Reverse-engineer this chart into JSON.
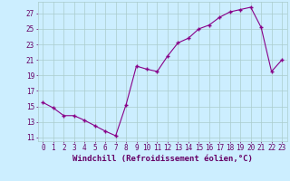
{
  "x": [
    0,
    1,
    2,
    3,
    4,
    5,
    6,
    7,
    8,
    9,
    10,
    11,
    12,
    13,
    14,
    15,
    16,
    17,
    18,
    19,
    20,
    21,
    22,
    23
  ],
  "y": [
    15.5,
    14.8,
    13.8,
    13.8,
    13.2,
    12.5,
    11.8,
    11.2,
    15.2,
    20.2,
    19.8,
    19.5,
    21.5,
    23.2,
    23.8,
    25.0,
    25.5,
    26.5,
    27.2,
    27.5,
    27.8,
    25.2,
    19.5,
    21.0
  ],
  "line_color": "#880088",
  "marker_color": "#880088",
  "bg_color": "#CCEEFF",
  "grid_color": "#AACCCC",
  "xlabel": "Windchill (Refroidissement éolien,°C)",
  "yticks": [
    11,
    13,
    15,
    17,
    19,
    21,
    23,
    25,
    27
  ],
  "xticks": [
    0,
    1,
    2,
    3,
    4,
    5,
    6,
    7,
    8,
    9,
    10,
    11,
    12,
    13,
    14,
    15,
    16,
    17,
    18,
    19,
    20,
    21,
    22,
    23
  ],
  "ylim": [
    10.5,
    28.5
  ],
  "xlim": [
    -0.5,
    23.5
  ],
  "font_color": "#660066",
  "tick_fontsize": 5.5,
  "label_fontsize": 6.5
}
